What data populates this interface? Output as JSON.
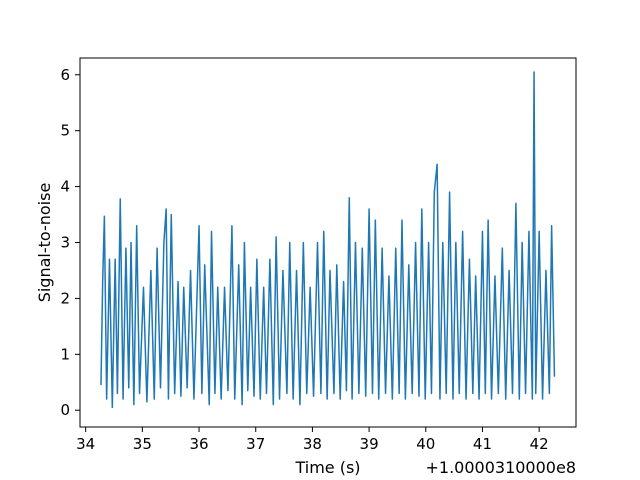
{
  "chart_data": {
    "type": "line",
    "title": "",
    "xlabel": "Time (s)",
    "ylabel": "Signal-to-noise",
    "x_offset_label": "+1.0000310000e8",
    "xlim": [
      33.9,
      42.65
    ],
    "ylim": [
      -0.3,
      6.3
    ],
    "x_ticks": [
      34,
      35,
      36,
      37,
      38,
      39,
      40,
      41,
      42
    ],
    "x_tick_labels": [
      "34",
      "35",
      "36",
      "37",
      "38",
      "39",
      "40",
      "41",
      "42"
    ],
    "y_ticks": [
      0,
      1,
      2,
      3,
      4,
      5,
      6
    ],
    "y_tick_labels": [
      "0",
      "1",
      "2",
      "3",
      "4",
      "5",
      "6"
    ],
    "grid": false,
    "line_color": "#1f77b4",
    "series": [
      {
        "x_start": 34.27,
        "x_end": 42.27,
        "points": [
          [
            34.27,
            0.45
          ],
          [
            34.3,
            2.3
          ],
          [
            34.33,
            3.47
          ],
          [
            34.37,
            0.2
          ],
          [
            34.42,
            2.7
          ],
          [
            34.47,
            0.05
          ],
          [
            34.52,
            2.7
          ],
          [
            34.56,
            0.3
          ],
          [
            34.61,
            3.78
          ],
          [
            34.66,
            0.2
          ],
          [
            34.71,
            2.9
          ],
          [
            34.76,
            0.4
          ],
          [
            34.8,
            3.0
          ],
          [
            34.85,
            0.1
          ],
          [
            34.9,
            3.3
          ],
          [
            34.95,
            0.3
          ],
          [
            35.02,
            2.2
          ],
          [
            35.08,
            0.15
          ],
          [
            35.15,
            2.5
          ],
          [
            35.21,
            0.2
          ],
          [
            35.26,
            2.9
          ],
          [
            35.32,
            0.4
          ],
          [
            35.38,
            3.0
          ],
          [
            35.42,
            3.6
          ],
          [
            35.46,
            0.2
          ],
          [
            35.51,
            3.5
          ],
          [
            35.57,
            0.3
          ],
          [
            35.63,
            2.3
          ],
          [
            35.68,
            0.25
          ],
          [
            35.73,
            2.2
          ],
          [
            35.79,
            0.4
          ],
          [
            35.85,
            2.5
          ],
          [
            35.91,
            0.2
          ],
          [
            36.0,
            3.3
          ],
          [
            36.05,
            0.3
          ],
          [
            36.1,
            2.6
          ],
          [
            36.18,
            0.1
          ],
          [
            36.22,
            3.2
          ],
          [
            36.28,
            0.3
          ],
          [
            36.33,
            2.2
          ],
          [
            36.39,
            0.2
          ],
          [
            36.45,
            2.2
          ],
          [
            36.51,
            0.35
          ],
          [
            36.58,
            3.3
          ],
          [
            36.63,
            0.2
          ],
          [
            36.7,
            2.6
          ],
          [
            36.76,
            0.1
          ],
          [
            36.8,
            3.0
          ],
          [
            36.86,
            0.35
          ],
          [
            36.91,
            2.2
          ],
          [
            36.97,
            0.25
          ],
          [
            37.02,
            2.7
          ],
          [
            37.08,
            0.2
          ],
          [
            37.14,
            2.2
          ],
          [
            37.19,
            0.3
          ],
          [
            37.25,
            2.7
          ],
          [
            37.31,
            0.1
          ],
          [
            37.36,
            3.1
          ],
          [
            37.42,
            0.2
          ],
          [
            37.48,
            2.5
          ],
          [
            37.55,
            0.3
          ],
          [
            37.6,
            3.0
          ],
          [
            37.66,
            0.2
          ],
          [
            37.72,
            2.5
          ],
          [
            37.78,
            0.1
          ],
          [
            37.84,
            3.0
          ],
          [
            37.9,
            0.3
          ],
          [
            37.96,
            2.2
          ],
          [
            38.02,
            0.25
          ],
          [
            38.09,
            3.0
          ],
          [
            38.15,
            0.3
          ],
          [
            38.2,
            3.2
          ],
          [
            38.26,
            0.2
          ],
          [
            38.31,
            2.5
          ],
          [
            38.38,
            0.3
          ],
          [
            38.43,
            2.6
          ],
          [
            38.49,
            0.2
          ],
          [
            38.55,
            2.3
          ],
          [
            38.6,
            0.35
          ],
          [
            38.65,
            3.8
          ],
          [
            38.7,
            0.2
          ],
          [
            38.76,
            3.0
          ],
          [
            38.82,
            0.3
          ],
          [
            38.88,
            2.9
          ],
          [
            38.94,
            0.25
          ],
          [
            39.0,
            3.6
          ],
          [
            39.06,
            0.3
          ],
          [
            39.11,
            3.4
          ],
          [
            39.17,
            0.2
          ],
          [
            39.23,
            2.9
          ],
          [
            39.29,
            0.3
          ],
          [
            39.35,
            2.4
          ],
          [
            39.41,
            0.2
          ],
          [
            39.47,
            2.9
          ],
          [
            39.53,
            0.3
          ],
          [
            39.58,
            3.4
          ],
          [
            39.64,
            0.2
          ],
          [
            39.7,
            2.6
          ],
          [
            39.76,
            0.3
          ],
          [
            39.82,
            3.0
          ],
          [
            39.88,
            0.25
          ],
          [
            39.93,
            3.6
          ],
          [
            39.99,
            0.2
          ],
          [
            40.05,
            3.0
          ],
          [
            40.1,
            0.3
          ],
          [
            40.15,
            3.9
          ],
          [
            40.2,
            4.4
          ],
          [
            40.25,
            0.2
          ],
          [
            40.3,
            3.0
          ],
          [
            40.36,
            0.3
          ],
          [
            40.42,
            3.9
          ],
          [
            40.48,
            0.2
          ],
          [
            40.53,
            3.0
          ],
          [
            40.59,
            0.3
          ],
          [
            40.65,
            3.2
          ],
          [
            40.71,
            0.2
          ],
          [
            40.77,
            2.7
          ],
          [
            40.83,
            0.3
          ],
          [
            40.88,
            2.4
          ],
          [
            40.94,
            0.2
          ],
          [
            41.0,
            3.2
          ],
          [
            41.05,
            0.3
          ],
          [
            41.1,
            3.4
          ],
          [
            41.16,
            0.2
          ],
          [
            41.22,
            2.4
          ],
          [
            41.28,
            0.3
          ],
          [
            41.35,
            2.9
          ],
          [
            41.41,
            0.2
          ],
          [
            41.47,
            2.5
          ],
          [
            41.53,
            0.3
          ],
          [
            41.59,
            3.7
          ],
          [
            41.65,
            0.2
          ],
          [
            41.7,
            3.0
          ],
          [
            41.76,
            0.3
          ],
          [
            41.82,
            3.2
          ],
          [
            41.88,
            0.2
          ],
          [
            41.91,
            6.05
          ],
          [
            41.94,
            0.3
          ],
          [
            42.0,
            3.2
          ],
          [
            42.06,
            0.2
          ],
          [
            42.12,
            2.5
          ],
          [
            42.18,
            0.3
          ],
          [
            42.22,
            3.3
          ],
          [
            42.27,
            0.6
          ]
        ]
      }
    ]
  }
}
